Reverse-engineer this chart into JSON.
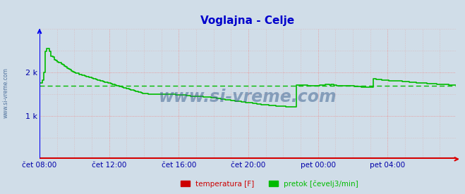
{
  "title": "Voglajna - Celje",
  "title_color": "#0000cc",
  "bg_color": "#d0dde8",
  "plot_bg_color": "#d0dde8",
  "ylabel_color": "#0000aa",
  "xlabel_color": "#0000aa",
  "watermark": "www.si-vreme.com",
  "watermark_color": "#3a6090",
  "ymin": 0,
  "ymax": 3000,
  "xtick_labels": [
    "čet 08:00",
    "čet 12:00",
    "čet 16:00",
    "čet 20:00",
    "pet 00:00",
    "pet 04:00"
  ],
  "pretok_color": "#00bb00",
  "pretok_avg_color": "#00bb00",
  "temperatura_color": "#cc0000",
  "axis_left_color": "#0000ee",
  "axis_bottom_color": "#dd0000",
  "legend_items": [
    {
      "label": "temperatura [F]",
      "color": "#cc0000"
    },
    {
      "label": "pretok [čevelj3/min]",
      "color": "#00bb00"
    }
  ],
  "pretok_avg": 1700,
  "temperatura_val": 30,
  "pretok_data": [
    1750,
    1750,
    1820,
    2000,
    2480,
    2550,
    2550,
    2480,
    2380,
    2350,
    2300,
    2280,
    2250,
    2220,
    2220,
    2200,
    2180,
    2150,
    2130,
    2100,
    2080,
    2060,
    2040,
    2020,
    2000,
    1990,
    1980,
    1960,
    1950,
    1940,
    1930,
    1920,
    1910,
    1900,
    1890,
    1880,
    1870,
    1860,
    1850,
    1840,
    1830,
    1820,
    1810,
    1800,
    1790,
    1780,
    1770,
    1760,
    1750,
    1740,
    1730,
    1720,
    1710,
    1700,
    1690,
    1680,
    1670,
    1660,
    1650,
    1640,
    1630,
    1620,
    1610,
    1600,
    1590,
    1580,
    1570,
    1560,
    1550,
    1540,
    1530,
    1520,
    1520,
    1515,
    1510,
    1505,
    1500,
    1500,
    1500,
    1500,
    1500,
    1500,
    1500,
    1500,
    1500,
    1500,
    1500,
    1500,
    1500,
    1500,
    1500,
    1495,
    1490,
    1490,
    1485,
    1485,
    1480,
    1480,
    1480,
    1480,
    1480,
    1470,
    1465,
    1460,
    1455,
    1450,
    1450,
    1450,
    1450,
    1450,
    1450,
    1445,
    1445,
    1440,
    1435,
    1435,
    1430,
    1425,
    1420,
    1420,
    1415,
    1410,
    1405,
    1400,
    1395,
    1390,
    1385,
    1380,
    1375,
    1370,
    1365,
    1360,
    1355,
    1350,
    1345,
    1340,
    1340,
    1335,
    1330,
    1325,
    1320,
    1315,
    1310,
    1310,
    1305,
    1300,
    1295,
    1290,
    1285,
    1280,
    1275,
    1270,
    1265,
    1260,
    1255,
    1250,
    1248,
    1248,
    1245,
    1240,
    1238,
    1235,
    1232,
    1230,
    1228,
    1225,
    1222,
    1220,
    1218,
    1215,
    1212,
    1210,
    1210,
    1208,
    1205,
    1205,
    1205,
    1710,
    1710,
    1710,
    1710,
    1710,
    1710,
    1710,
    1710,
    1700,
    1700,
    1700,
    1700,
    1700,
    1700,
    1700,
    1700,
    1710,
    1710,
    1715,
    1715,
    1720,
    1720,
    1720,
    1715,
    1720,
    1720,
    1710,
    1705,
    1700,
    1700,
    1700,
    1700,
    1700,
    1700,
    1700,
    1700,
    1695,
    1690,
    1688,
    1685,
    1680,
    1678,
    1675,
    1672,
    1670,
    1668,
    1665,
    1662,
    1660,
    1658,
    1658,
    1655,
    1655,
    1850,
    1850,
    1845,
    1840,
    1838,
    1835,
    1830,
    1825,
    1822,
    1820,
    1815,
    1812,
    1810,
    1810,
    1808,
    1805,
    1805,
    1800,
    1800,
    1798,
    1795,
    1790,
    1785,
    1785,
    1783,
    1780,
    1775,
    1772,
    1770,
    1768,
    1765,
    1762,
    1760,
    1758,
    1755,
    1752,
    1750,
    1748,
    1745,
    1742,
    1740,
    1738,
    1736,
    1734,
    1732,
    1730,
    1728,
    1726,
    1724,
    1722,
    1720,
    1718,
    1716,
    1714,
    1712,
    1710,
    1708,
    1706
  ]
}
